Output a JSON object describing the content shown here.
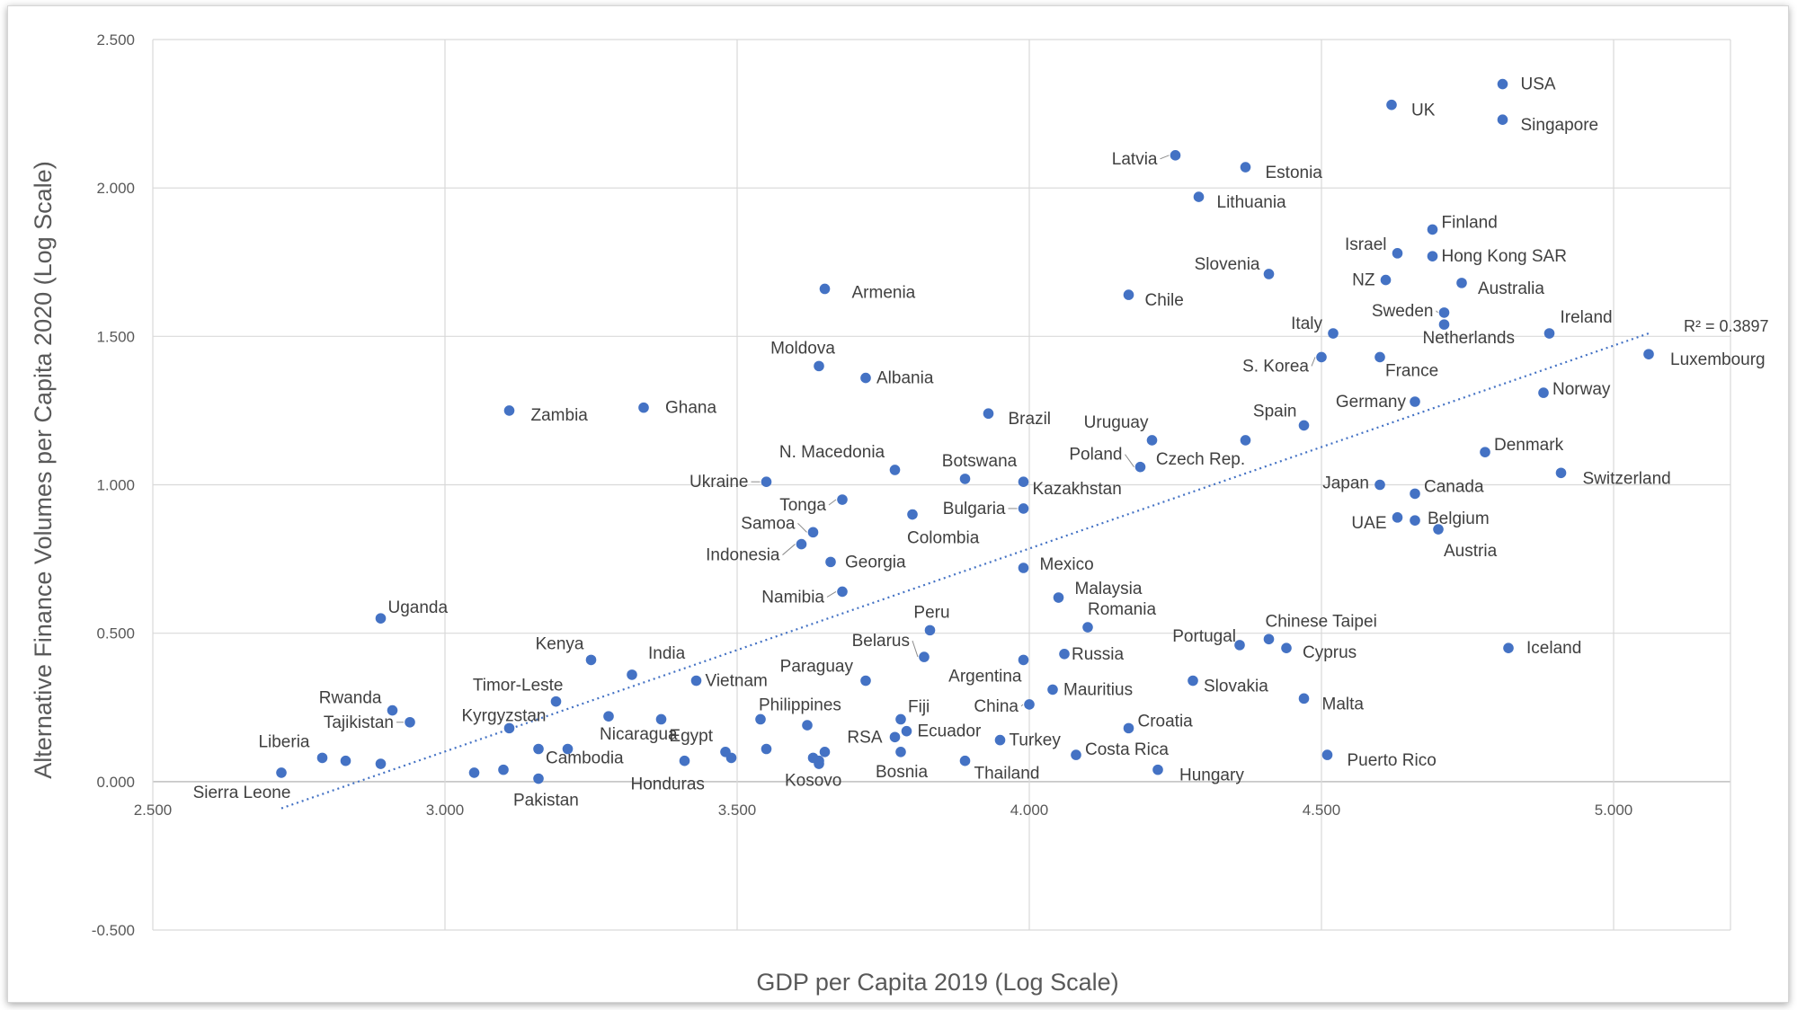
{
  "chart_data": {
    "type": "scatter",
    "xlabel": "GDP per Capita 2019 (Log Scale)",
    "ylabel": "Alternative Finance Volumes per Capita 2020 (Log Scale)",
    "xlim": [
      2.5,
      5.2
    ],
    "ylim": [
      -0.5,
      2.5
    ],
    "x_ticks": [
      "2.500",
      "3.000",
      "3.500",
      "4.000",
      "4.500",
      "5.000"
    ],
    "y_ticks": [
      "2.500",
      "2.000",
      "1.500",
      "1.000",
      "0.500",
      "0.000",
      "-0.500"
    ],
    "x_tick_values": [
      2.5,
      3.0,
      3.5,
      4.0,
      4.5,
      5.0
    ],
    "y_tick_values": [
      2.5,
      2.0,
      1.5,
      1.0,
      0.5,
      0.0,
      -0.5
    ],
    "grid": true,
    "marker_color": "#4472c4",
    "trendline": {
      "style": "dotted",
      "x": [
        2.72,
        5.06
      ],
      "y": [
        -0.09,
        1.51
      ],
      "label": "R² = 0.3897"
    },
    "points": [
      {
        "label": "USA",
        "x": 4.81,
        "y": 2.35
      },
      {
        "label": "UK",
        "x": 4.62,
        "y": 2.28
      },
      {
        "label": "Singapore",
        "x": 4.81,
        "y": 2.23
      },
      {
        "label": "Latvia",
        "x": 4.25,
        "y": 2.11
      },
      {
        "label": "Estonia",
        "x": 4.37,
        "y": 2.07
      },
      {
        "label": "Lithuania",
        "x": 4.29,
        "y": 1.97
      },
      {
        "label": "Finland",
        "x": 4.69,
        "y": 1.86
      },
      {
        "label": "Israel",
        "x": 4.63,
        "y": 1.78
      },
      {
        "label": "Hong Kong SAR",
        "x": 4.69,
        "y": 1.77
      },
      {
        "label": "Slovenia",
        "x": 4.41,
        "y": 1.71
      },
      {
        "label": "NZ",
        "x": 4.61,
        "y": 1.69
      },
      {
        "label": "Australia",
        "x": 4.74,
        "y": 1.68
      },
      {
        "label": "Armenia",
        "x": 3.65,
        "y": 1.66
      },
      {
        "label": "Chile",
        "x": 4.17,
        "y": 1.64
      },
      {
        "label": "Sweden",
        "x": 4.71,
        "y": 1.58
      },
      {
        "label": "Italy",
        "x": 4.52,
        "y": 1.51
      },
      {
        "label": "Ireland",
        "x": 4.89,
        "y": 1.51
      },
      {
        "label": "Netherlands",
        "x": 4.71,
        "y": 1.54
      },
      {
        "label": "Luxembourg",
        "x": 5.06,
        "y": 1.44
      },
      {
        "label": "S. Korea",
        "x": 4.5,
        "y": 1.43
      },
      {
        "label": "France",
        "x": 4.6,
        "y": 1.43
      },
      {
        "label": "Moldova",
        "x": 3.64,
        "y": 1.4
      },
      {
        "label": "Albania",
        "x": 3.72,
        "y": 1.36
      },
      {
        "label": "Norway",
        "x": 4.88,
        "y": 1.31
      },
      {
        "label": "Germany",
        "x": 4.66,
        "y": 1.28
      },
      {
        "label": "Zambia",
        "x": 3.11,
        "y": 1.25
      },
      {
        "label": "Ghana",
        "x": 3.34,
        "y": 1.26
      },
      {
        "label": "Brazil",
        "x": 3.93,
        "y": 1.24
      },
      {
        "label": "Spain",
        "x": 4.47,
        "y": 1.2
      },
      {
        "label": "Uruguay",
        "x": 4.21,
        "y": 1.15
      },
      {
        "label": "Czech Rep.",
        "x": 4.37,
        "y": 1.15
      },
      {
        "label": "Denmark",
        "x": 4.78,
        "y": 1.11
      },
      {
        "label": "N. Macedonia",
        "x": 3.77,
        "y": 1.05
      },
      {
        "label": "Poland",
        "x": 4.19,
        "y": 1.06
      },
      {
        "label": "Switzerland",
        "x": 4.91,
        "y": 1.04
      },
      {
        "label": "Botswana",
        "x": 3.89,
        "y": 1.02
      },
      {
        "label": "Ukraine",
        "x": 3.55,
        "y": 1.01
      },
      {
        "label": "Kazakhstan",
        "x": 3.99,
        "y": 1.01
      },
      {
        "label": "Japan",
        "x": 4.6,
        "y": 1.0
      },
      {
        "label": "Canada",
        "x": 4.66,
        "y": 0.97
      },
      {
        "label": "Tonga",
        "x": 3.68,
        "y": 0.95
      },
      {
        "label": "Bulgaria",
        "x": 3.99,
        "y": 0.92
      },
      {
        "label": "Colombia",
        "x": 3.8,
        "y": 0.9
      },
      {
        "label": "UAE",
        "x": 4.63,
        "y": 0.89
      },
      {
        "label": "Belgium",
        "x": 4.66,
        "y": 0.88
      },
      {
        "label": "Austria",
        "x": 4.7,
        "y": 0.85
      },
      {
        "label": "Samoa",
        "x": 3.63,
        "y": 0.84
      },
      {
        "label": "Indonesia",
        "x": 3.61,
        "y": 0.8
      },
      {
        "label": "Georgia",
        "x": 3.66,
        "y": 0.74
      },
      {
        "label": "Mexico",
        "x": 3.99,
        "y": 0.72
      },
      {
        "label": "Namibia",
        "x": 3.68,
        "y": 0.64
      },
      {
        "label": "Malaysia",
        "x": 4.05,
        "y": 0.62
      },
      {
        "label": "Uganda",
        "x": 2.89,
        "y": 0.55
      },
      {
        "label": "Romania",
        "x": 4.1,
        "y": 0.52
      },
      {
        "label": "Peru",
        "x": 3.83,
        "y": 0.51
      },
      {
        "label": "Chinese Taipei",
        "x": 4.41,
        "y": 0.48
      },
      {
        "label": "Portugal",
        "x": 4.36,
        "y": 0.46
      },
      {
        "label": "Iceland",
        "x": 4.82,
        "y": 0.45
      },
      {
        "label": "Cyprus",
        "x": 4.44,
        "y": 0.45
      },
      {
        "label": "Russia",
        "x": 4.06,
        "y": 0.43
      },
      {
        "label": "Belarus",
        "x": 3.82,
        "y": 0.42
      },
      {
        "label": "Kenya",
        "x": 3.25,
        "y": 0.41
      },
      {
        "label": "Argentina",
        "x": 3.99,
        "y": 0.41
      },
      {
        "label": "India",
        "x": 3.32,
        "y": 0.36
      },
      {
        "label": "Vietnam",
        "x": 3.43,
        "y": 0.34
      },
      {
        "label": "Paraguay",
        "x": 3.72,
        "y": 0.34
      },
      {
        "label": "Slovakia",
        "x": 4.28,
        "y": 0.34
      },
      {
        "label": "Mauritius",
        "x": 4.04,
        "y": 0.31
      },
      {
        "label": "Malta",
        "x": 4.47,
        "y": 0.28
      },
      {
        "label": "Timor-Leste",
        "x": 3.19,
        "y": 0.27
      },
      {
        "label": "China",
        "x": 4.0,
        "y": 0.26
      },
      {
        "label": "Rwanda",
        "x": 2.91,
        "y": 0.24
      },
      {
        "label": "Nicaragua",
        "x": 3.28,
        "y": 0.22
      },
      {
        "label": "Philippines",
        "x": 3.54,
        "y": 0.21
      },
      {
        "label": "Fiji",
        "x": 3.78,
        "y": 0.21
      },
      {
        "label": "Tajikistan",
        "x": 2.94,
        "y": 0.2
      },
      {
        "label": "Kyrgyzstan",
        "x": 3.11,
        "y": 0.18
      },
      {
        "label": "RSA",
        "x": 3.77,
        "y": 0.15
      },
      {
        "label": "Croatia",
        "x": 4.17,
        "y": 0.18
      },
      {
        "label": "Ecuador",
        "x": 3.79,
        "y": 0.17
      },
      {
        "label": "Egypt",
        "x": 3.48,
        "y": 0.1
      },
      {
        "label": "Turkey",
        "x": 3.95,
        "y": 0.14
      },
      {
        "label": "Liberia",
        "x": 2.79,
        "y": 0.08
      },
      {
        "label": "Cambodia",
        "x": 3.16,
        "y": 0.11
      },
      {
        "label": "Costa Rica",
        "x": 4.08,
        "y": 0.09
      },
      {
        "label": "Puerto Rico",
        "x": 4.51,
        "y": 0.09
      },
      {
        "label": "Honduras",
        "x": 3.41,
        "y": 0.07
      },
      {
        "label": "Kosovo",
        "x": 3.64,
        "y": 0.07
      },
      {
        "label": "Bosnia",
        "x": 3.78,
        "y": 0.1
      },
      {
        "label": "Thailand",
        "x": 3.89,
        "y": 0.07
      },
      {
        "label": "Hungary",
        "x": 4.22,
        "y": 0.04
      },
      {
        "label": "Pakistan",
        "x": 3.16,
        "y": 0.01
      },
      {
        "label": "Sierra Leone",
        "x": 2.72,
        "y": 0.03
      },
      {
        "label": "",
        "x": 2.83,
        "y": 0.07
      },
      {
        "label": "",
        "x": 2.89,
        "y": 0.06
      },
      {
        "label": "",
        "x": 3.05,
        "y": 0.03
      },
      {
        "label": "",
        "x": 3.1,
        "y": 0.04
      },
      {
        "label": "",
        "x": 3.21,
        "y": 0.11
      },
      {
        "label": "",
        "x": 3.37,
        "y": 0.21
      },
      {
        "label": "",
        "x": 3.49,
        "y": 0.08
      },
      {
        "label": "",
        "x": 3.55,
        "y": 0.11
      },
      {
        "label": "",
        "x": 3.62,
        "y": 0.19
      },
      {
        "label": "",
        "x": 3.63,
        "y": 0.08
      },
      {
        "label": "",
        "x": 3.65,
        "y": 0.1
      },
      {
        "label": "",
        "x": 3.64,
        "y": 0.06
      }
    ]
  }
}
